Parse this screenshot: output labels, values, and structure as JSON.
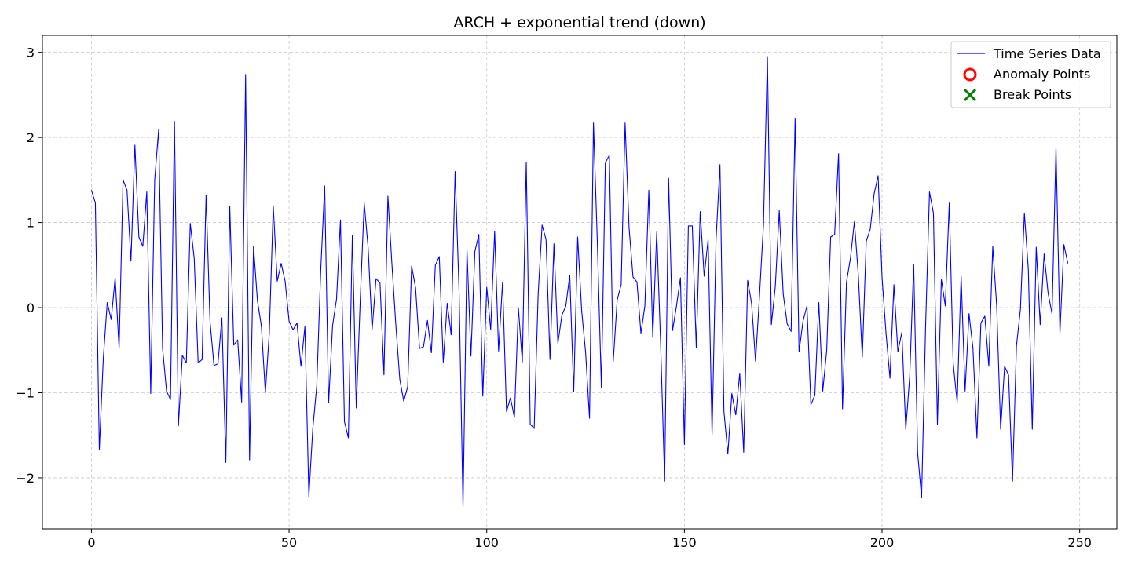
{
  "chart_data": {
    "type": "line",
    "title": "ARCH + exponential trend (down)",
    "xlabel": "",
    "ylabel": "",
    "xlim": [
      -12.4,
      259.4
    ],
    "ylim": [
      -2.6,
      3.2
    ],
    "x_ticks": [
      0,
      50,
      100,
      150,
      200,
      250
    ],
    "x_tick_labels": [
      "0",
      "50",
      "100",
      "150",
      "200",
      "250"
    ],
    "y_ticks": [
      -2,
      -1,
      0,
      1,
      2,
      3
    ],
    "y_tick_labels": [
      "−2",
      "−1",
      "0",
      "1",
      "2",
      "3"
    ],
    "grid": true,
    "legend_position": "top-right",
    "legend": [
      {
        "label": "Time Series Data",
        "marker": "line",
        "color": "#0000ff"
      },
      {
        "label": "Anomaly Points",
        "marker": "circle",
        "color": "#ff0000"
      },
      {
        "label": "Break Points",
        "marker": "x",
        "color": "#008000"
      }
    ],
    "series": [
      {
        "name": "Time Series Data",
        "color": "#0000ff",
        "x_start": 0,
        "x_step": 1,
        "values": [
          1.38,
          1.23,
          -1.67,
          -0.6,
          0.06,
          -0.14,
          0.35,
          -0.48,
          1.5,
          1.38,
          0.55,
          1.91,
          0.83,
          0.72,
          1.36,
          -1.01,
          1.5,
          2.09,
          -0.48,
          -0.98,
          -1.08,
          2.19,
          -1.39,
          -0.56,
          -0.65,
          0.99,
          0.58,
          -0.65,
          -0.61,
          1.32,
          -0.16,
          -0.68,
          -0.66,
          -0.12,
          -1.82,
          1.19,
          -0.44,
          -0.38,
          -1.11,
          2.74,
          -1.79,
          0.72,
          0.08,
          -0.22,
          -1.0,
          -0.29,
          1.19,
          0.31,
          0.52,
          0.31,
          -0.16,
          -0.26,
          -0.18,
          -0.69,
          -0.22,
          -2.22,
          -1.42,
          -0.92,
          0.43,
          1.43,
          -1.12,
          -0.21,
          0.1,
          1.03,
          -1.34,
          -1.53,
          0.85,
          -1.18,
          0.09,
          1.23,
          0.7,
          -0.26,
          0.34,
          0.29,
          -0.79,
          1.31,
          0.52,
          -0.2,
          -0.84,
          -1.1,
          -0.93,
          0.49,
          0.23,
          -0.48,
          -0.46,
          -0.15,
          -0.53,
          0.5,
          0.6,
          -0.64,
          0.05,
          -0.32,
          1.6,
          0.2,
          -2.34,
          0.68,
          -0.57,
          0.66,
          0.86,
          -1.04,
          0.24,
          -0.26,
          0.9,
          -0.51,
          0.3,
          -1.22,
          -1.06,
          -1.29,
          0.0,
          -0.64,
          1.71,
          -1.37,
          -1.42,
          0.15,
          0.97,
          0.8,
          -0.61,
          0.75,
          -0.42,
          -0.09,
          0.02,
          0.38,
          -0.99,
          0.83,
          -0.03,
          -0.52,
          -1.3,
          2.17,
          0.73,
          -0.94,
          1.7,
          1.79,
          -0.63,
          0.09,
          0.27,
          2.17,
          0.94,
          0.36,
          0.3,
          -0.3,
          0.02,
          1.38,
          -0.35,
          0.89,
          -0.44,
          -2.04,
          1.52,
          -0.27,
          0.02,
          0.35,
          -1.61,
          0.96,
          0.96,
          -0.47,
          1.13,
          0.37,
          0.8,
          -1.49,
          0.79,
          1.68,
          -1.22,
          -1.72,
          -1.01,
          -1.26,
          -0.77,
          -1.7,
          0.32,
          0.05,
          -0.63,
          0.14,
          0.97,
          2.95,
          -0.2,
          0.25,
          1.14,
          0.16,
          -0.19,
          -0.28,
          2.22,
          -0.52,
          -0.16,
          0.02,
          -1.14,
          -1.03,
          0.06,
          -0.98,
          -0.5,
          0.83,
          0.86,
          1.81,
          -1.19,
          0.3,
          0.58,
          1.01,
          0.38,
          -0.58,
          0.78,
          0.92,
          1.34,
          1.55,
          0.35,
          -0.3,
          -0.83,
          0.27,
          -0.52,
          -0.29,
          -1.43,
          -0.81,
          0.51,
          -1.71,
          -2.23,
          -0.24,
          1.36,
          1.11,
          -1.37,
          0.33,
          0.02,
          1.23,
          -0.66,
          -1.11,
          0.37,
          -0.98,
          -0.07,
          -0.48,
          -1.53,
          -0.18,
          -0.1,
          -0.69,
          0.72,
          0.02,
          -1.43,
          -0.69,
          -0.79,
          -2.04,
          -0.45,
          -0.02,
          1.11,
          0.45,
          -1.43,
          0.71,
          -0.2,
          0.63,
          0.17,
          -0.07,
          1.88,
          -0.3,
          0.74,
          0.52
        ]
      }
    ],
    "anomaly_points": [],
    "break_points": []
  }
}
